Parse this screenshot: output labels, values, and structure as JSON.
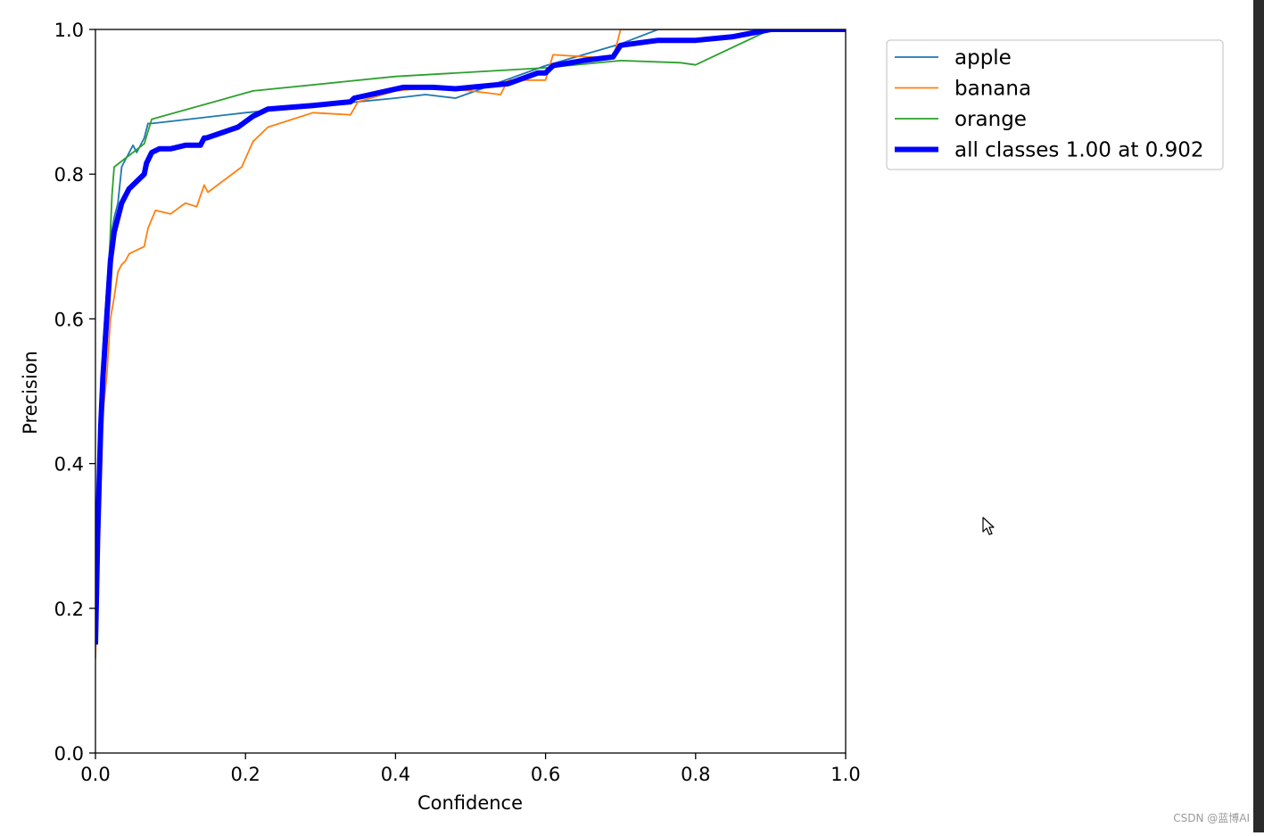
{
  "chart_data": {
    "type": "line",
    "title": "",
    "xlabel": "Confidence",
    "ylabel": "Precision",
    "xlim": [
      0.0,
      1.0
    ],
    "ylim": [
      0.0,
      1.0
    ],
    "xticks": [
      "0.0",
      "0.2",
      "0.4",
      "0.6",
      "0.8",
      "1.0"
    ],
    "yticks": [
      "0.0",
      "0.2",
      "0.4",
      "0.6",
      "0.8",
      "1.0"
    ],
    "grid": false,
    "legend_position": "outside top-right",
    "series": [
      {
        "name": "apple",
        "color": "#1f77b4",
        "x": [
          0.0,
          0.005,
          0.01,
          0.015,
          0.02,
          0.025,
          0.03,
          0.035,
          0.04,
          0.05,
          0.055,
          0.065,
          0.07,
          0.075,
          0.1,
          0.2,
          0.3,
          0.4,
          0.44,
          0.48,
          0.52,
          0.6,
          0.7,
          0.75,
          0.8,
          0.85,
          0.9,
          1.0
        ],
        "y": [
          0.15,
          0.42,
          0.56,
          0.64,
          0.71,
          0.74,
          0.76,
          0.81,
          0.82,
          0.84,
          0.83,
          0.85,
          0.87,
          0.87,
          0.873,
          0.885,
          0.895,
          0.905,
          0.91,
          0.905,
          0.92,
          0.95,
          0.98,
          1.0,
          1.0,
          1.0,
          1.0,
          1.0
        ]
      },
      {
        "name": "banana",
        "color": "#ff7f0e",
        "x": [
          0.0,
          0.005,
          0.01,
          0.015,
          0.02,
          0.025,
          0.03,
          0.035,
          0.04,
          0.045,
          0.065,
          0.07,
          0.08,
          0.1,
          0.12,
          0.135,
          0.145,
          0.15,
          0.195,
          0.21,
          0.23,
          0.29,
          0.34,
          0.35,
          0.4,
          0.45,
          0.5,
          0.54,
          0.55,
          0.6,
          0.61,
          0.69,
          0.7,
          0.8,
          1.0
        ],
        "y": [
          0.13,
          0.35,
          0.47,
          0.52,
          0.6,
          0.63,
          0.665,
          0.675,
          0.68,
          0.69,
          0.7,
          0.725,
          0.75,
          0.745,
          0.76,
          0.755,
          0.785,
          0.775,
          0.81,
          0.845,
          0.865,
          0.885,
          0.882,
          0.9,
          0.915,
          0.92,
          0.915,
          0.91,
          0.93,
          0.93,
          0.965,
          0.96,
          1.0,
          1.0,
          1.0
        ]
      },
      {
        "name": "orange",
        "color": "#2ca02c",
        "x": [
          0.0,
          0.01,
          0.02,
          0.022,
          0.025,
          0.05,
          0.065,
          0.075,
          0.21,
          0.4,
          0.6,
          0.7,
          0.78,
          0.8,
          0.9,
          1.0
        ],
        "y": [
          0.15,
          0.5,
          0.72,
          0.77,
          0.81,
          0.83,
          0.842,
          0.876,
          0.915,
          0.935,
          0.947,
          0.957,
          0.954,
          0.951,
          1.0,
          1.0
        ]
      },
      {
        "name": "all classes 1.00 at 0.902",
        "color": "#0000ff",
        "x": [
          0.0,
          0.003,
          0.007,
          0.01,
          0.015,
          0.02,
          0.025,
          0.03,
          0.035,
          0.04,
          0.045,
          0.05,
          0.055,
          0.065,
          0.068,
          0.075,
          0.085,
          0.1,
          0.12,
          0.14,
          0.145,
          0.148,
          0.19,
          0.21,
          0.23,
          0.29,
          0.34,
          0.345,
          0.41,
          0.45,
          0.48,
          0.5,
          0.55,
          0.59,
          0.6,
          0.61,
          0.65,
          0.69,
          0.7,
          0.75,
          0.8,
          0.85,
          0.9,
          1.0
        ],
        "y": [
          0.15,
          0.3,
          0.45,
          0.52,
          0.6,
          0.68,
          0.72,
          0.74,
          0.76,
          0.77,
          0.78,
          0.785,
          0.79,
          0.8,
          0.815,
          0.83,
          0.835,
          0.835,
          0.84,
          0.84,
          0.85,
          0.85,
          0.865,
          0.88,
          0.89,
          0.895,
          0.9,
          0.905,
          0.92,
          0.92,
          0.918,
          0.92,
          0.925,
          0.94,
          0.94,
          0.95,
          0.957,
          0.962,
          0.978,
          0.985,
          0.985,
          0.99,
          1.0,
          1.0
        ]
      }
    ]
  },
  "watermark": "CSDN @蓝博AI",
  "icons": {
    "cursor": "mouse-pointer-icon"
  }
}
